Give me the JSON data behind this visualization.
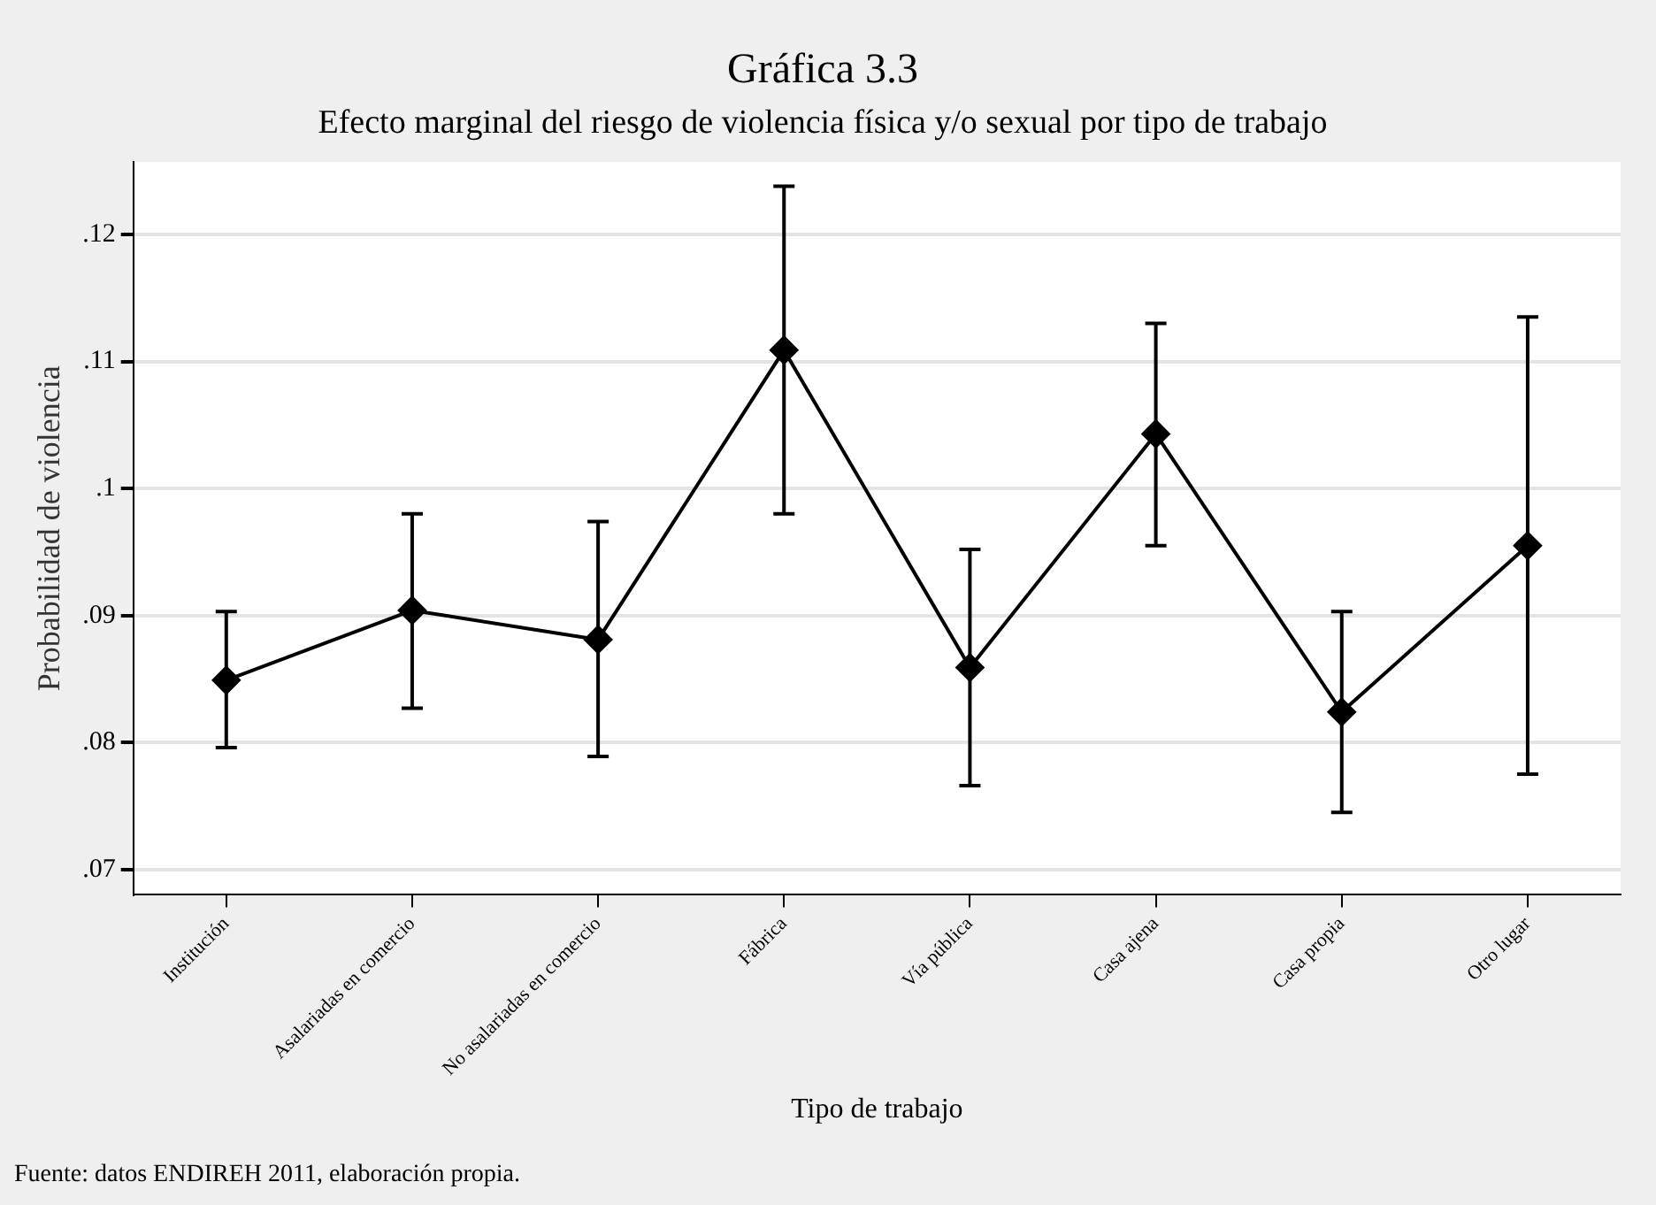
{
  "chart_data": {
    "type": "line",
    "title": "Gráfica 3.3",
    "subtitle": "Efecto marginal del riesgo de violencia física y/o sexual por tipo de trabajo",
    "xlabel": "Tipo de trabajo",
    "ylabel": "Probabilidad de violencia",
    "annotations": [
      "Fuente: datos ENDIREH 2011, elaboración propia."
    ],
    "categories": [
      "Institución",
      "Asalariadas en comercio",
      "No asalariadas en comercio",
      "Fábrica",
      "Vía pública",
      "Casa ajena",
      "Casa propia",
      "Otro lugar"
    ],
    "series": [
      {
        "color": "#000000",
        "values": [
          0.0849,
          0.0904,
          0.0881,
          0.1109,
          0.0859,
          0.1043,
          0.0824,
          0.0955
        ],
        "errors": [
          [
            0.0796,
            0.0903
          ],
          [
            0.0827,
            0.098
          ],
          [
            0.0789,
            0.0974
          ],
          [
            0.098,
            0.1238
          ],
          [
            0.0766,
            0.0952
          ],
          [
            0.0955,
            0.113
          ],
          [
            0.0745,
            0.0903
          ],
          [
            0.0775,
            0.1135
          ]
        ]
      }
    ],
    "ylim": [
      0.068,
      0.1257
    ],
    "yticks": [
      {
        "value": 0.07,
        "label": ".07"
      },
      {
        "value": 0.08,
        "label": ".08"
      },
      {
        "value": 0.09,
        "label": ".09"
      },
      {
        "value": 0.1,
        "label": ".1"
      },
      {
        "value": 0.11,
        "label": ".11"
      },
      {
        "value": 0.12,
        "label": ".12"
      }
    ],
    "grid": "y",
    "legend": false,
    "marker": "diamond",
    "line_style": "solid"
  }
}
